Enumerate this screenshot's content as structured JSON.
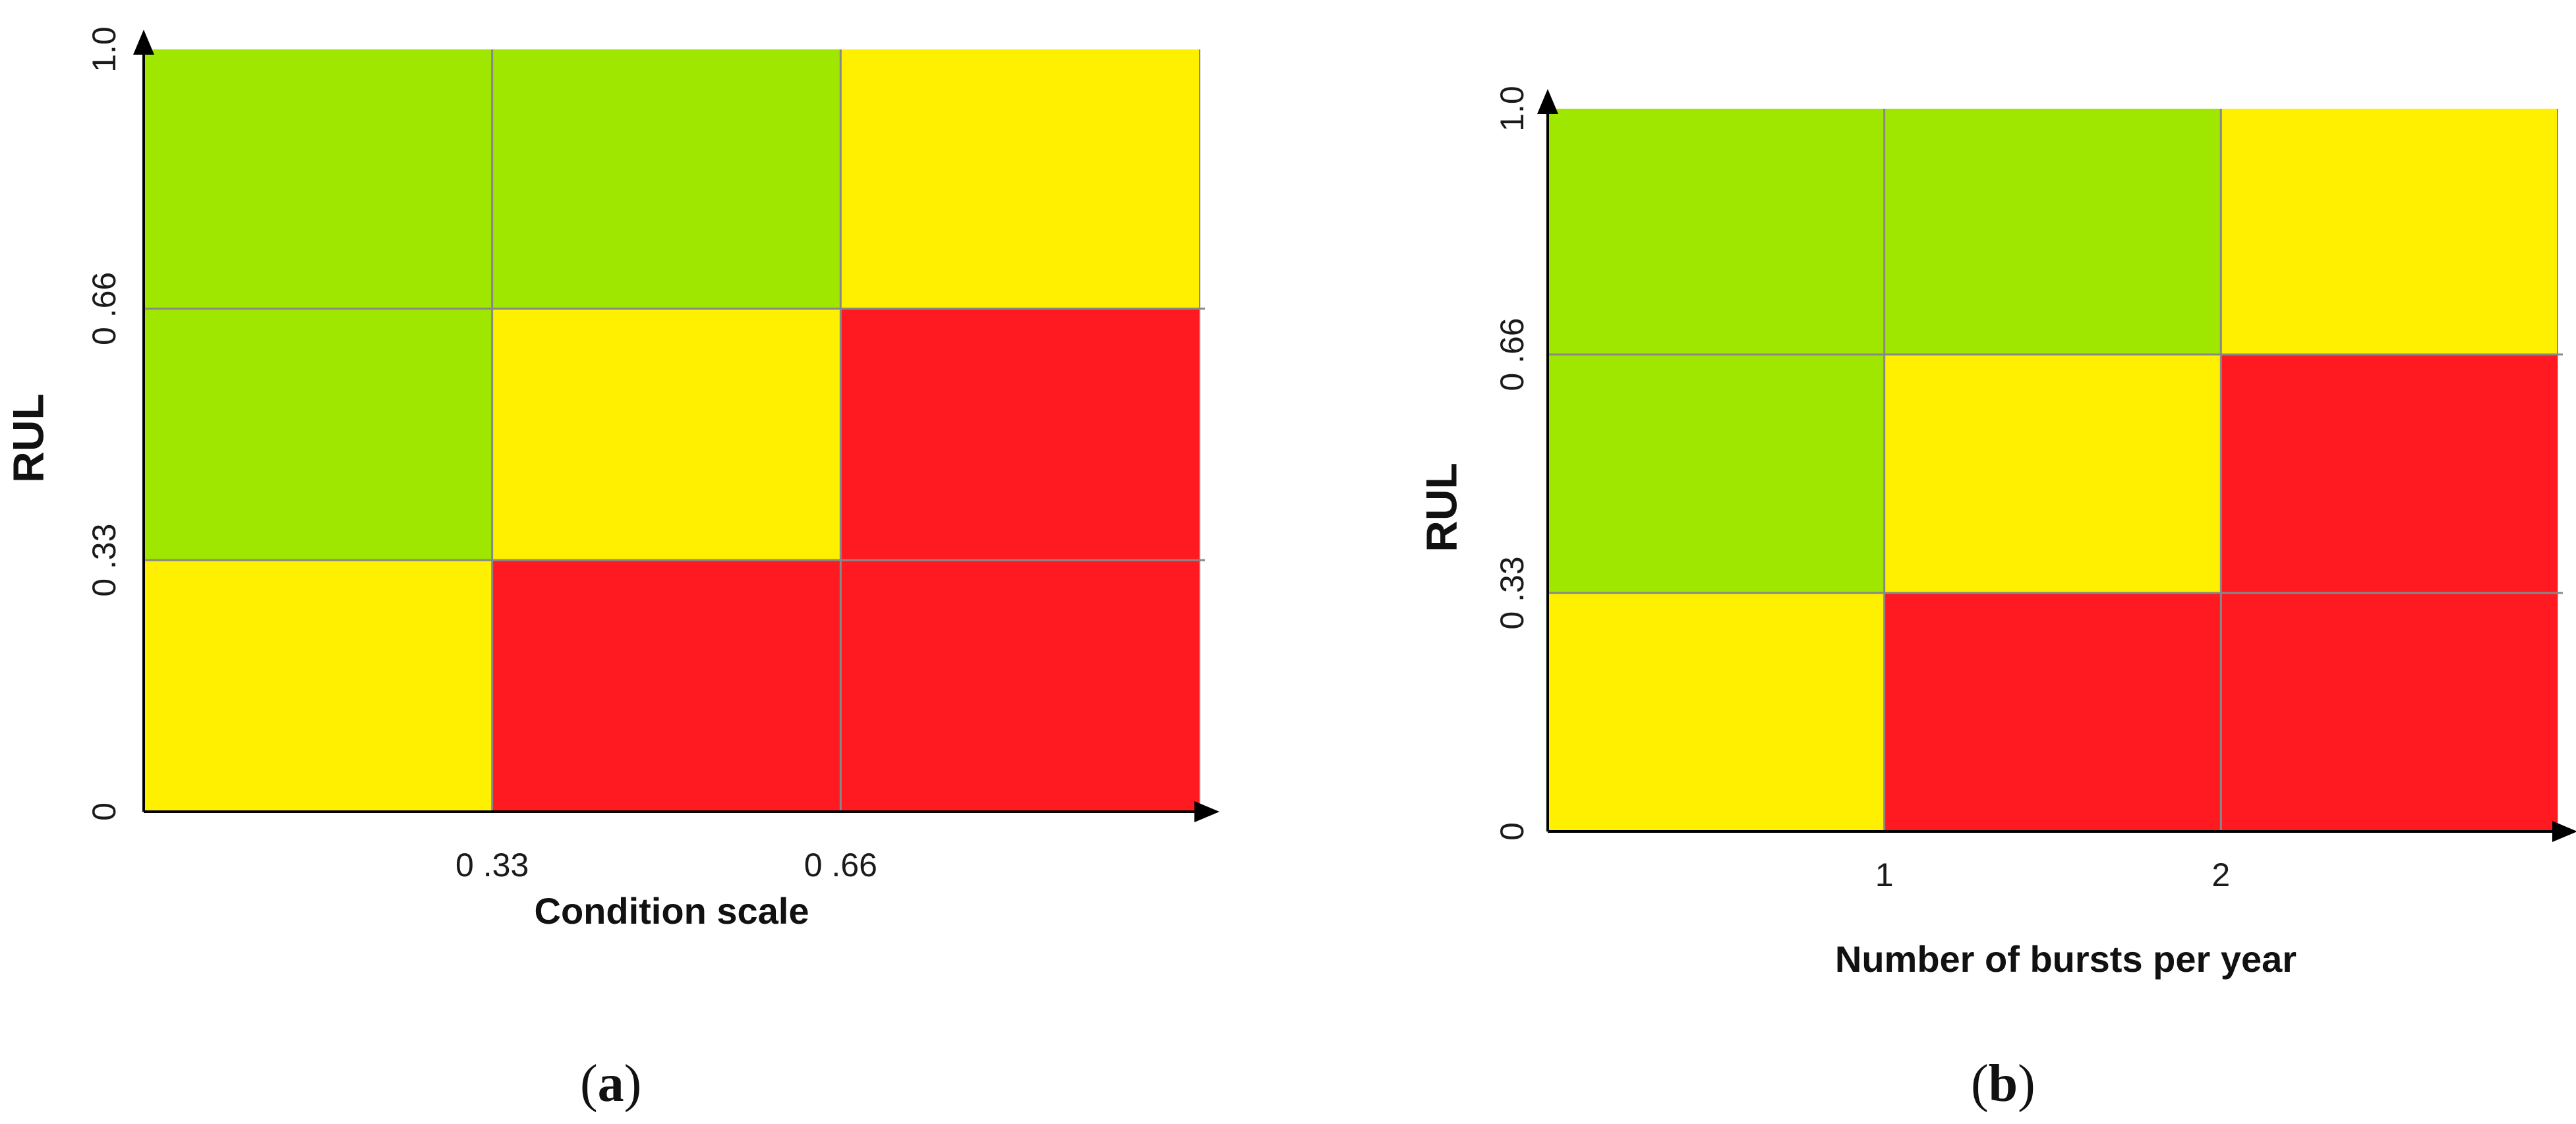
{
  "colors": {
    "green": "#9fe600",
    "yellow": "#fff000",
    "red": "#ff1a22",
    "grid": "#888888",
    "axis": "#000000"
  },
  "chart_data": [
    {
      "type": "heatmap",
      "panel": "a",
      "caption_letter": "a",
      "xlabel": "Condition scale",
      "ylabel": "RUL",
      "x_ticks": [
        {
          "value": 0.33,
          "label": "0 .33"
        },
        {
          "value": 0.66,
          "label": "0 .66"
        }
      ],
      "y_ticks": [
        {
          "value": 0,
          "label": "0"
        },
        {
          "value": 0.33,
          "label": "0 .33"
        },
        {
          "value": 0.66,
          "label": "0 .66"
        },
        {
          "value": 1.0,
          "label": "1.0"
        }
      ],
      "xlim": [
        0,
        1.0
      ],
      "ylim": [
        0,
        1.0
      ],
      "x_bins": [
        [
          0,
          0.33
        ],
        [
          0.33,
          0.66
        ],
        [
          0.66,
          1.0
        ]
      ],
      "y_bins": [
        [
          0,
          0.33
        ],
        [
          0.33,
          0.66
        ],
        [
          0.66,
          1.0
        ]
      ],
      "cells": [
        [
          "yellow",
          "red",
          "red"
        ],
        [
          "green",
          "yellow",
          "red"
        ],
        [
          "green",
          "green",
          "yellow"
        ]
      ],
      "grid": true
    },
    {
      "type": "heatmap",
      "panel": "b",
      "caption_letter": "b",
      "xlabel": "Number of bursts per year",
      "ylabel": "RUL",
      "x_ticks": [
        {
          "value": 1,
          "label": "1"
        },
        {
          "value": 2,
          "label": "2"
        }
      ],
      "y_ticks": [
        {
          "value": 0,
          "label": "0"
        },
        {
          "value": 0.33,
          "label": "0 .33"
        },
        {
          "value": 0.66,
          "label": "0 .66"
        },
        {
          "value": 1.0,
          "label": "1.0"
        }
      ],
      "xlim": [
        0,
        3
      ],
      "ylim": [
        0,
        1.0
      ],
      "x_bins": [
        [
          0,
          1
        ],
        [
          1,
          2
        ],
        [
          2,
          3
        ]
      ],
      "y_bins": [
        [
          0,
          0.33
        ],
        [
          0.33,
          0.66
        ],
        [
          0.66,
          1.0
        ]
      ],
      "cells": [
        [
          "yellow",
          "red",
          "red"
        ],
        [
          "green",
          "yellow",
          "red"
        ],
        [
          "green",
          "green",
          "yellow"
        ]
      ],
      "grid": true
    }
  ]
}
